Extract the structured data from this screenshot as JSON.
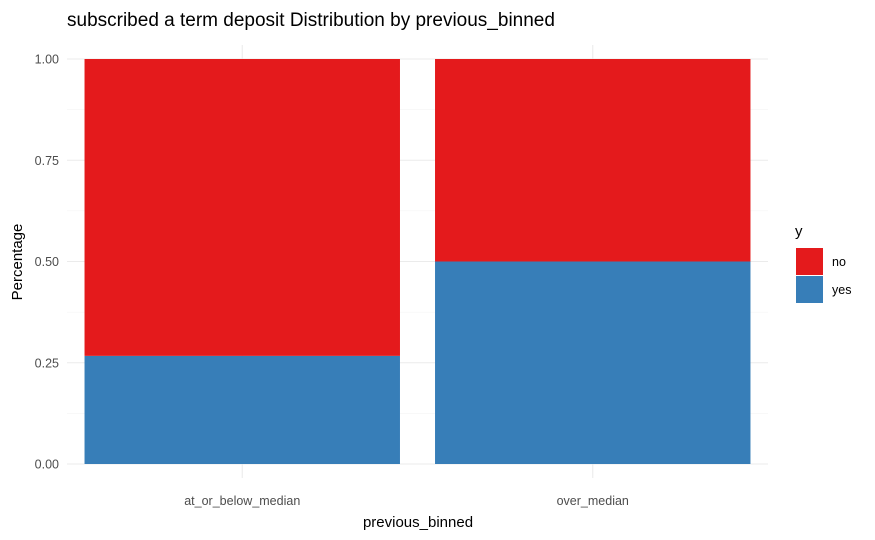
{
  "chart_data": {
    "type": "bar",
    "stacked": true,
    "title": "subscribed a term deposit Distribution by previous_binned",
    "xlabel": "previous_binned",
    "ylabel": "Percentage",
    "categories": [
      "at_or_below_median",
      "over_median"
    ],
    "series": [
      {
        "name": "no",
        "color": "#e41a1c",
        "values": [
          0.733,
          0.5
        ]
      },
      {
        "name": "yes",
        "color": "#377eb8",
        "values": [
          0.267,
          0.5
        ]
      }
    ],
    "ylim": [
      0,
      1
    ],
    "yticks": [
      "0.00",
      "0.25",
      "0.50",
      "0.75",
      "1.00"
    ],
    "grid": true,
    "legend": {
      "title": "y",
      "position": "right"
    }
  }
}
